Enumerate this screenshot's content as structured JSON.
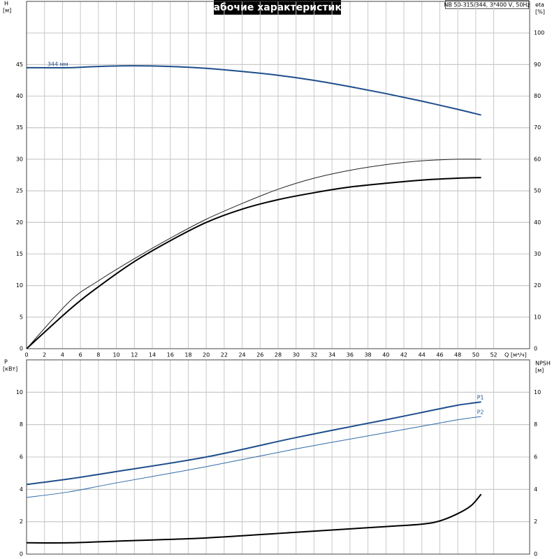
{
  "chart_data": [
    {
      "type": "line",
      "title": "Рабочие характеристики",
      "subtitle": "NB 50-315/344, 3*400 V, 50Hz",
      "y_label": "H",
      "y_unit": "[м]",
      "y2_label": "eta",
      "y2_unit": "[%]",
      "x_label": "Q [м³/ч]",
      "x": [
        0,
        4.8,
        8,
        12,
        16,
        20,
        24,
        28,
        32,
        36,
        40,
        44,
        48,
        50.6
      ],
      "series": [
        {
          "color": "#000000",
          "width": 2,
          "values": [
            0,
            6.2,
            9.8,
            13.8,
            17.1,
            20.0,
            22.1,
            23.6,
            24.7,
            25.6,
            26.2,
            26.7,
            27.0,
            27.1
          ]
        },
        {
          "color": "#222222",
          "width": 1,
          "axis": "y2",
          "values": [
            0,
            15,
            21.5,
            28.5,
            35,
            41,
            46,
            50.5,
            54,
            56.5,
            58.3,
            59.5,
            60,
            60
          ]
        },
        {
          "name": "344 мм",
          "color": "#1f4e8c",
          "width": 2,
          "values": [
            44.5,
            44.5,
            44.7,
            44.8,
            44.7,
            44.4,
            43.9,
            43.3,
            42.5,
            41.5,
            40.4,
            39.2,
            37.9,
            37.0
          ]
        }
      ],
      "xlim": [
        0,
        56
      ],
      "xticks": [
        0,
        2,
        4,
        6,
        8,
        10,
        12,
        14,
        16,
        18,
        20,
        22,
        24,
        26,
        28,
        30,
        32,
        34,
        36,
        38,
        40,
        42,
        44,
        46,
        48,
        50,
        52
      ],
      "ylim": [
        0,
        55
      ],
      "yticks": [
        0,
        5,
        10,
        15,
        20,
        25,
        30,
        35,
        40,
        45
      ],
      "y2lim": [
        0,
        110
      ],
      "y2ticks": [
        0,
        10,
        20,
        30,
        40,
        50,
        60,
        70,
        80,
        90,
        100
      ],
      "grid": true
    },
    {
      "type": "line",
      "y_label": "P",
      "y_unit": "[кВт]",
      "y2_label": "NPSH",
      "y2_unit": "[м]",
      "x": [
        0,
        4.8,
        10,
        20,
        30,
        40,
        44,
        46,
        48,
        49.5,
        50.6
      ],
      "series": [
        {
          "name": "P1",
          "color": "#1f4e8c",
          "width": 2,
          "values": [
            4.3,
            4.65,
            5.1,
            6.0,
            7.2,
            8.3,
            8.75,
            8.98,
            9.2,
            9.32,
            9.4
          ]
        },
        {
          "name": "P2",
          "color": "#2f6aa8",
          "width": 1,
          "values": [
            3.5,
            3.85,
            4.4,
            5.4,
            6.5,
            7.5,
            7.9,
            8.1,
            8.3,
            8.42,
            8.5
          ]
        },
        {
          "color": "#000000",
          "width": 2,
          "axis": "y2",
          "values": [
            0.7,
            0.7,
            0.8,
            1.0,
            1.35,
            1.7,
            1.85,
            2.05,
            2.5,
            3.0,
            3.7
          ]
        }
      ],
      "xlim": [
        0,
        56
      ],
      "xticks": [
        0,
        2,
        4,
        6,
        8,
        10,
        12,
        14,
        16,
        18,
        20,
        22,
        24,
        26,
        28,
        30,
        32,
        34,
        36,
        38,
        40,
        42,
        44,
        46,
        48,
        50,
        52
      ],
      "xtick_labels": false,
      "ylim": [
        0,
        12
      ],
      "yticks": [
        0,
        2,
        4,
        6,
        8,
        10
      ],
      "y2lim": [
        0,
        12
      ],
      "y2ticks": [
        0,
        2,
        4,
        6,
        8,
        10
      ],
      "grid": true
    }
  ]
}
